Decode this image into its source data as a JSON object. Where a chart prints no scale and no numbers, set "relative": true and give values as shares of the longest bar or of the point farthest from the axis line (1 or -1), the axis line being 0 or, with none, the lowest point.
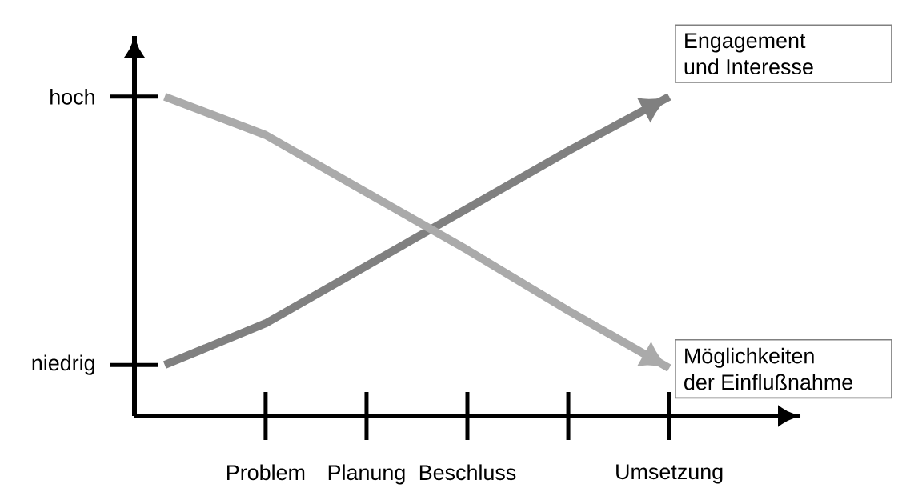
{
  "chart_data": {
    "type": "line",
    "relative": true,
    "categories": [
      null,
      "Problem",
      "Planung",
      "Beschluss",
      null,
      "Umsetzung"
    ],
    "series": [
      {
        "name": "Engagement und Interesse",
        "color": "#808080",
        "values": [
          0.16,
          0.29,
          0.47,
          0.65,
          0.83,
          1
        ]
      },
      {
        "name": "Möglichkeiten der Einflußnahme",
        "color": "#aaaaaa",
        "values": [
          1,
          0.88,
          0.7,
          0.52,
          0.33,
          0.15
        ]
      }
    ],
    "annotations": [
      "hoch",
      "niedrig"
    ],
    "marker": "none",
    "line_style": "solid"
  }
}
